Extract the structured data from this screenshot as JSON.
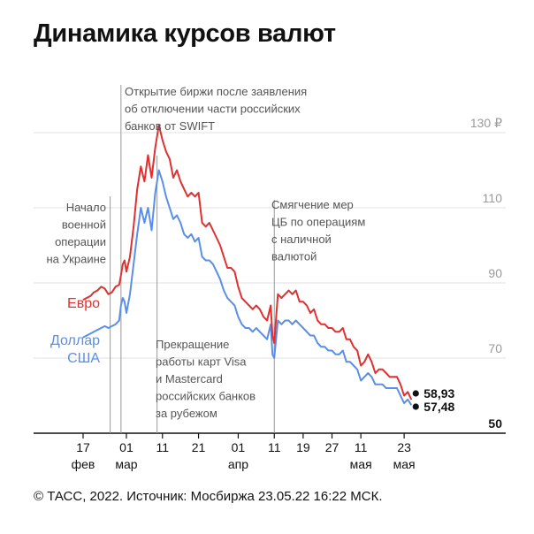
{
  "title": "Динамика курсов валют",
  "footer": "© ТАСС, 2022. Источник: Мосбиржа 23.05.22 16:22 МСК.",
  "chart_data": {
    "type": "line",
    "title": "Динамика курсов валют",
    "ylim": [
      50,
      130
    ],
    "y_ticks": [
      {
        "value": 130,
        "label": "130 ₽"
      },
      {
        "value": 110,
        "label": "110"
      },
      {
        "value": 90,
        "label": "90"
      },
      {
        "value": 70,
        "label": "70"
      },
      {
        "value": 50,
        "label": "50"
      }
    ],
    "x_ticks": [
      {
        "day": 0,
        "label": [
          "17",
          "фев"
        ]
      },
      {
        "day": 12,
        "label": [
          "01",
          "мар"
        ]
      },
      {
        "day": 22,
        "label": [
          "11",
          ""
        ]
      },
      {
        "day": 32,
        "label": [
          "21",
          ""
        ]
      },
      {
        "day": 43,
        "label": [
          "01",
          "апр"
        ]
      },
      {
        "day": 53,
        "label": [
          "11",
          ""
        ]
      },
      {
        "day": 61,
        "label": [
          "19",
          ""
        ]
      },
      {
        "day": 69,
        "label": [
          "27",
          ""
        ]
      },
      {
        "day": 77,
        "label": [
          "11",
          "мая"
        ]
      },
      {
        "day": 89,
        "label": [
          "23",
          "мая"
        ]
      }
    ],
    "x_range": [
      0,
      94
    ],
    "colors": {
      "euro": "#e03030",
      "usd": "#5b8fe6",
      "grid": "#e2e2e2"
    },
    "series": [
      {
        "name": "Евро",
        "label_lines": [
          "Евро"
        ],
        "last_value": "58,93",
        "points": [
          [
            0,
            85.5
          ],
          [
            1,
            86
          ],
          [
            2,
            86.5
          ],
          [
            3,
            87.5
          ],
          [
            4,
            88
          ],
          [
            5,
            89
          ],
          [
            6,
            88.5
          ],
          [
            7,
            87
          ],
          [
            8,
            87.5
          ],
          [
            9,
            89
          ],
          [
            10,
            89.5
          ],
          [
            10.5,
            92
          ],
          [
            11,
            95
          ],
          [
            11.5,
            96
          ],
          [
            12,
            93
          ],
          [
            13,
            97
          ],
          [
            14,
            105
          ],
          [
            15,
            115
          ],
          [
            16,
            121
          ],
          [
            17,
            117
          ],
          [
            18,
            124
          ],
          [
            19,
            118
          ],
          [
            20,
            126
          ],
          [
            21,
            132
          ],
          [
            22,
            128
          ],
          [
            23,
            125
          ],
          [
            24,
            123
          ],
          [
            25,
            118
          ],
          [
            26,
            120
          ],
          [
            27,
            117
          ],
          [
            28,
            115
          ],
          [
            29,
            113
          ],
          [
            30,
            114
          ],
          [
            31,
            113
          ],
          [
            32,
            114
          ],
          [
            33,
            106
          ],
          [
            34,
            105
          ],
          [
            35,
            106
          ],
          [
            36,
            104
          ],
          [
            37,
            102
          ],
          [
            38,
            100
          ],
          [
            39,
            97
          ],
          [
            40,
            94
          ],
          [
            41,
            94
          ],
          [
            42,
            93
          ],
          [
            43,
            89
          ],
          [
            44,
            86
          ],
          [
            45,
            85
          ],
          [
            46,
            84
          ],
          [
            47,
            83
          ],
          [
            48,
            84
          ],
          [
            49,
            83
          ],
          [
            50,
            81
          ],
          [
            51,
            80
          ],
          [
            52,
            84
          ],
          [
            52.5,
            76
          ],
          [
            53,
            74
          ],
          [
            54,
            87
          ],
          [
            55,
            86
          ],
          [
            56,
            87
          ],
          [
            57,
            88
          ],
          [
            58,
            87
          ],
          [
            59,
            88
          ],
          [
            60,
            85
          ],
          [
            61,
            85
          ],
          [
            62,
            84
          ],
          [
            63,
            82
          ],
          [
            64,
            83
          ],
          [
            65,
            80
          ],
          [
            66,
            79
          ],
          [
            67,
            79
          ],
          [
            68,
            78
          ],
          [
            69,
            78
          ],
          [
            70,
            77
          ],
          [
            71,
            77
          ],
          [
            72,
            78
          ],
          [
            73,
            75
          ],
          [
            74,
            75
          ],
          [
            75,
            73
          ],
          [
            76,
            72
          ],
          [
            77,
            68
          ],
          [
            78,
            69
          ],
          [
            79,
            71
          ],
          [
            80,
            69
          ],
          [
            81,
            66
          ],
          [
            82,
            67
          ],
          [
            83,
            67
          ],
          [
            84,
            66
          ],
          [
            85,
            65
          ],
          [
            86,
            65
          ],
          [
            87,
            65
          ],
          [
            88,
            63
          ],
          [
            89,
            60
          ],
          [
            90,
            61
          ],
          [
            91,
            58.93
          ]
        ]
      },
      {
        "name": "Доллар США",
        "label_lines": [
          "Доллар",
          "США"
        ],
        "last_value": "57,48",
        "points": [
          [
            0,
            75.5
          ],
          [
            1,
            76
          ],
          [
            2,
            76.5
          ],
          [
            3,
            77
          ],
          [
            4,
            77.5
          ],
          [
            5,
            78
          ],
          [
            6,
            78.5
          ],
          [
            7,
            78
          ],
          [
            8,
            78.5
          ],
          [
            9,
            79
          ],
          [
            10,
            80
          ],
          [
            10.5,
            84
          ],
          [
            11,
            86
          ],
          [
            11.5,
            85
          ],
          [
            12,
            82
          ],
          [
            13,
            87
          ],
          [
            14,
            95
          ],
          [
            15,
            103
          ],
          [
            16,
            110
          ],
          [
            17,
            106
          ],
          [
            18,
            110
          ],
          [
            19,
            104
          ],
          [
            20,
            114
          ],
          [
            21,
            120
          ],
          [
            22,
            117
          ],
          [
            23,
            113
          ],
          [
            24,
            110
          ],
          [
            25,
            107
          ],
          [
            26,
            108
          ],
          [
            27,
            106
          ],
          [
            28,
            103
          ],
          [
            29,
            102
          ],
          [
            30,
            103
          ],
          [
            31,
            101
          ],
          [
            32,
            102
          ],
          [
            33,
            97
          ],
          [
            34,
            96
          ],
          [
            35,
            96
          ],
          [
            36,
            95
          ],
          [
            37,
            93
          ],
          [
            38,
            91
          ],
          [
            39,
            88
          ],
          [
            40,
            86
          ],
          [
            41,
            85
          ],
          [
            42,
            84
          ],
          [
            43,
            81
          ],
          [
            44,
            79
          ],
          [
            45,
            78
          ],
          [
            46,
            78
          ],
          [
            47,
            77
          ],
          [
            48,
            78
          ],
          [
            49,
            77
          ],
          [
            50,
            76
          ],
          [
            51,
            75
          ],
          [
            52,
            79
          ],
          [
            52.5,
            71
          ],
          [
            53,
            70
          ],
          [
            54,
            80
          ],
          [
            55,
            79
          ],
          [
            56,
            80
          ],
          [
            57,
            80
          ],
          [
            58,
            79
          ],
          [
            59,
            80
          ],
          [
            60,
            79
          ],
          [
            61,
            78
          ],
          [
            62,
            77
          ],
          [
            63,
            76
          ],
          [
            64,
            76
          ],
          [
            65,
            74
          ],
          [
            66,
            73
          ],
          [
            67,
            73
          ],
          [
            68,
            72
          ],
          [
            69,
            72
          ],
          [
            70,
            71
          ],
          [
            71,
            71
          ],
          [
            72,
            72
          ],
          [
            73,
            69
          ],
          [
            74,
            69
          ],
          [
            75,
            68
          ],
          [
            76,
            67
          ],
          [
            77,
            64
          ],
          [
            78,
            65
          ],
          [
            79,
            66
          ],
          [
            80,
            65
          ],
          [
            81,
            63
          ],
          [
            82,
            63
          ],
          [
            83,
            63
          ],
          [
            84,
            62
          ],
          [
            85,
            62
          ],
          [
            86,
            62
          ],
          [
            87,
            62
          ],
          [
            88,
            60
          ],
          [
            89,
            58
          ],
          [
            90,
            59
          ],
          [
            91,
            57.48
          ]
        ]
      }
    ],
    "annotations": [
      {
        "day": 7.5,
        "lines": [
          "Начало",
          "военной",
          "операции",
          "на Украине"
        ]
      },
      {
        "day": 10.5,
        "lines": [
          "Открытие биржи после заявления",
          "об отключении части российских",
          "банков от SWIFT"
        ]
      },
      {
        "day": 20.5,
        "lines": [
          "Прекращение",
          "работы карт Visa",
          "и Mastercard",
          "российских банков",
          "за рубежом"
        ]
      },
      {
        "day": 53,
        "lines": [
          "Смягчение мер",
          "ЦБ по операциям",
          "с наличной",
          "валютой"
        ]
      }
    ]
  }
}
